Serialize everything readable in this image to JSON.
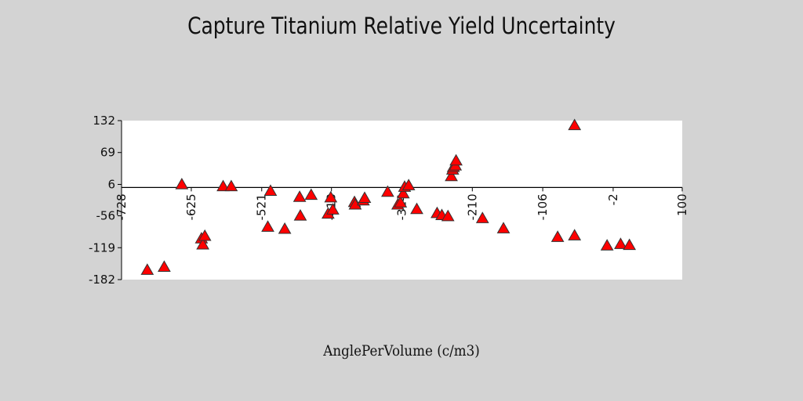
{
  "chart_data": {
    "type": "scatter",
    "title": "Capture Titanium Relative Yield Uncertainty",
    "xlabel": "AnglePerVolume (c/m3)",
    "ylabel": "",
    "xlim": [
      -728,
      100
    ],
    "ylim": [
      -182,
      132
    ],
    "x_ticks": [
      -728,
      -625,
      -521,
      -418,
      -314,
      -210,
      -106,
      -2,
      100
    ],
    "x_tick_labels": [
      "-728",
      "-625",
      "-521",
      "-418",
      "-314",
      "-210",
      "-106",
      "-2",
      "100"
    ],
    "y_ticks": [
      -182,
      -119,
      -56,
      6,
      69,
      132
    ],
    "y_tick_labels": [
      "-182",
      "-119",
      "-56",
      "6",
      "69",
      "132"
    ],
    "grid": false,
    "marker": "triangle",
    "marker_color": "#ff0000",
    "marker_edge_color": "#333333",
    "zero_line": true,
    "series": [
      {
        "x": [
          -690,
          -665,
          -639,
          -610,
          -608,
          -605,
          -578,
          -566,
          -512,
          -508,
          -487,
          -465,
          -464,
          -448,
          -423,
          -419,
          -416,
          -384,
          -383,
          -371,
          -369,
          -335,
          -320,
          -316,
          -312,
          -310,
          -304,
          -292,
          -262,
          -255,
          -246,
          -241,
          -239,
          -238,
          -235,
          -234,
          -195,
          -164,
          -84,
          -59,
          -59,
          -11,
          9,
          22
        ],
        "y": [
          -163,
          -157,
          6,
          -101,
          -113,
          -96,
          2,
          2,
          -78,
          -7,
          -82,
          -19,
          -56,
          -15,
          -52,
          -20,
          -44,
          -29,
          -34,
          -26,
          -21,
          -9,
          -34,
          -30,
          -12,
          1,
          4,
          -43,
          -51,
          -55,
          -57,
          22,
          35,
          40,
          43,
          53,
          -61,
          -81,
          -98,
          143,
          -95,
          -115,
          -112,
          -114
        ]
      }
    ]
  }
}
